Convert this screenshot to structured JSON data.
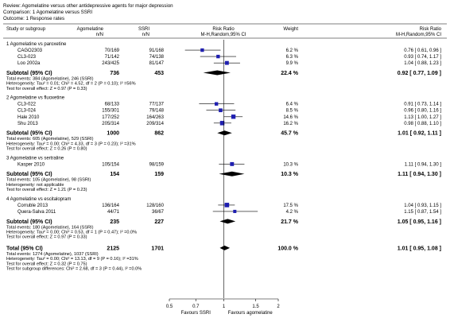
{
  "header": {
    "review": "Review:  Agomelatine versus other antidepressive agents for major depression",
    "comparison": "Comparison:  1 Agomelatine versus SSRI",
    "outcome": "Outcome:  1 Response rates"
  },
  "columns": {
    "study": "Study or subgroup",
    "exp": "Agomelatine",
    "exp_n": "n/N",
    "ctl": "SSRI",
    "ctl_n": "n/N",
    "rr": "Risk Ratio",
    "rr_method": "M-H,Random,95% CI",
    "weight": "Weight",
    "rr2": "Risk Ratio",
    "rr2_method": "M-H,Random,95% CI"
  },
  "colors": {
    "point": "#1f1fb0",
    "line": "#000000"
  },
  "chart_data": {
    "type": "forest",
    "scale": "log",
    "xlim": [
      0.5,
      2
    ],
    "ticks": [
      0.5,
      0.7,
      1,
      1.5,
      2
    ],
    "tick_labels": [
      "0.5",
      "0.7",
      "1",
      "1.5",
      "2"
    ],
    "xlabel_left": "Favours SSRI",
    "xlabel_right": "Favours agomelatine",
    "subgroups": [
      {
        "title": "1 Agomelatine vs paroxetine",
        "studies": [
          {
            "name": "CAGO2303",
            "exp": "70/169",
            "ctl": "91/168",
            "weight": "6.2 %",
            "rr": 0.76,
            "lo": 0.61,
            "hi": 0.96,
            "ci": "0.76 [ 0.61, 0.96 ]"
          },
          {
            "name": "CL3-023",
            "exp": "71/142",
            "ctl": "74/138",
            "weight": "6.3 %",
            "rr": 0.93,
            "lo": 0.74,
            "hi": 1.17,
            "ci": "0.93 [ 0.74, 1.17 ]"
          },
          {
            "name": "Loo 2002a",
            "exp": "243/425",
            "ctl": "81/147",
            "weight": "9.9 %",
            "rr": 1.04,
            "lo": 0.88,
            "hi": 1.23,
            "ci": "1.04 [ 0.88, 1.23 ]"
          }
        ],
        "subtotal": {
          "label": "Subtotal (95% CI)",
          "exp": "736",
          "ctl": "453",
          "weight": "22.4 %",
          "rr": 0.92,
          "lo": 0.77,
          "hi": 1.09,
          "ci": "0.92 [ 0.77, 1.09 ]"
        },
        "notes": [
          "Total events: 384 (Agomelatine), 246 (SSRI)",
          "Heterogeneity: Tau² = 0.01; Chi² = 4.52, df = 2 (P = 0.10); I² =56%",
          "Test for overall effect: Z = 0.97 (P = 0.33)"
        ]
      },
      {
        "title": "2 Agomelatine vs fluoxetine",
        "studies": [
          {
            "name": "CL3-022",
            "exp": "68/133",
            "ctl": "77/137",
            "weight": "6.4 %",
            "rr": 0.91,
            "lo": 0.73,
            "hi": 1.14,
            "ci": "0.91 [ 0.73, 1.14 ]"
          },
          {
            "name": "CL3-024",
            "exp": "155/301",
            "ctl": "79/148",
            "weight": "8.5 %",
            "rr": 0.96,
            "lo": 0.8,
            "hi": 1.16,
            "ci": "0.96 [ 0.80, 1.16 ]"
          },
          {
            "name": "Hale 2010",
            "exp": "177/252",
            "ctl": "164/263",
            "weight": "14.6 %",
            "rr": 1.13,
            "lo": 1.0,
            "hi": 1.27,
            "ci": "1.13 [ 1.00, 1.27 ]"
          },
          {
            "name": "Shu 2013",
            "exp": "205/314",
            "ctl": "209/314",
            "weight": "16.2 %",
            "rr": 0.98,
            "lo": 0.88,
            "hi": 1.1,
            "ci": "0.98 [ 0.88, 1.10 ]"
          }
        ],
        "subtotal": {
          "label": "Subtotal (95% CI)",
          "exp": "1000",
          "ctl": "862",
          "weight": "45.7 %",
          "rr": 1.01,
          "lo": 0.92,
          "hi": 1.11,
          "ci": "1.01 [ 0.92, 1.11 ]"
        },
        "notes": [
          "Total events: 605 (Agomelatine), 529 (SSRI)",
          "Heterogeneity: Tau² = 0.00; Chi² = 4.33, df = 3 (P = 0.23); I² =31%",
          "Test for overall effect: Z = 0.26 (P = 0.80)"
        ]
      },
      {
        "title": "3 Agomelatine vs sertraline",
        "studies": [
          {
            "name": "Kasper 2010",
            "exp": "105/154",
            "ctl": "98/159",
            "weight": "10.3 %",
            "rr": 1.11,
            "lo": 0.94,
            "hi": 1.3,
            "ci": "1.11 [ 0.94, 1.30 ]"
          }
        ],
        "subtotal": {
          "label": "Subtotal (95% CI)",
          "exp": "154",
          "ctl": "159",
          "weight": "10.3 %",
          "rr": 1.11,
          "lo": 0.94,
          "hi": 1.3,
          "ci": "1.11 [ 0.94, 1.30 ]"
        },
        "notes": [
          "Total events: 105 (Agomelatine), 98 (SSRI)",
          "Heterogeneity: not applicable",
          "Test for overall effect: Z = 1.21 (P = 0.23)"
        ]
      },
      {
        "title": "4 Agomelatine vs escitalopram",
        "studies": [
          {
            "name": "Corruble 2013",
            "exp": "136/164",
            "ctl": "128/160",
            "weight": "17.5 %",
            "rr": 1.04,
            "lo": 0.93,
            "hi": 1.15,
            "ci": "1.04 [ 0.93, 1.15 ]"
          },
          {
            "name": "Quera-Salva 2011",
            "exp": "44/71",
            "ctl": "36/67",
            "weight": "4.2 %",
            "rr": 1.15,
            "lo": 0.87,
            "hi": 1.54,
            "ci": "1.15 [ 0.87, 1.54 ]"
          }
        ],
        "subtotal": {
          "label": "Subtotal (95% CI)",
          "exp": "235",
          "ctl": "227",
          "weight": "21.7 %",
          "rr": 1.05,
          "lo": 0.95,
          "hi": 1.16,
          "ci": "1.05 [ 0.95, 1.16 ]"
        },
        "notes": [
          "Total events: 180 (Agomelatine), 164 (SSRI)",
          "Heterogeneity: Tau² = 0.00; Chi² = 0.53, df = 1 (P = 0.47); I² =0.0%",
          "Test for overall effect: Z = 0.97 (P = 0.33)"
        ]
      }
    ],
    "total": {
      "label": "Total (95% CI)",
      "exp": "2125",
      "ctl": "1701",
      "weight": "100.0 %",
      "rr": 1.01,
      "lo": 0.95,
      "hi": 1.08,
      "ci": "1.01 [ 0.95, 1.08 ]"
    },
    "total_notes": [
      "Total events: 1274 (Agomelatine), 1037 (SSRI)",
      "Heterogeneity: Tau² = 0.00; Chi² = 13.13, df = 9 (P = 0.16); I² =31%",
      "Test for overall effect: Z = 0.32 (P = 0.75)",
      "Test for subgroup differences: Chi² = 2.68, df = 3 (P = 0.44), I² =0.0%"
    ]
  }
}
